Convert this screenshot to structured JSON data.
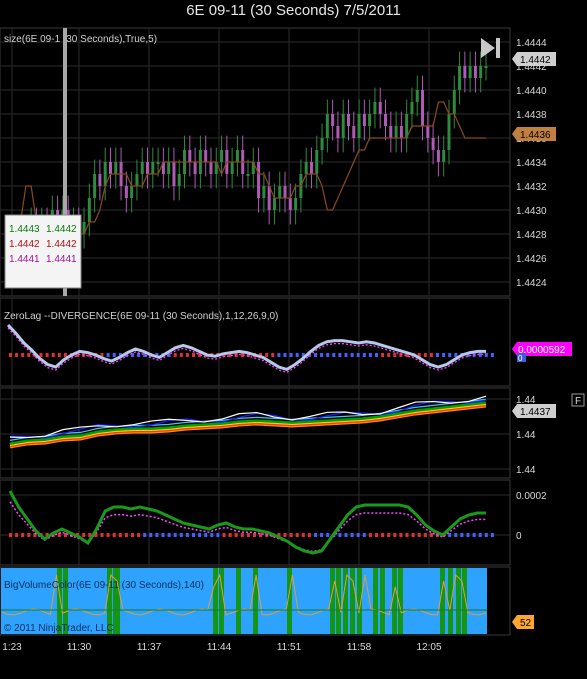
{
  "window": {
    "title": "6E 09-11 (30 Seconds)  7/5/2011"
  },
  "colors": {
    "background": "#000000",
    "grid": "#2b2b2b",
    "up_bar": "#2e8b3e",
    "down_bar": "#b05ab8",
    "sma": "#8b4a1e",
    "price_flag": "#cfcfcf",
    "sma_flag": "#c08040",
    "zerolag_line": "#b8c8e8",
    "zerolag_flag": "#ff00ff",
    "divergence_green": "#1a9a1a",
    "divergence_dots": "#ff44ff",
    "volume_bg": "#2da3ff",
    "volume_green": "#159515",
    "volume_line": "#d8a040",
    "volume_flag": "#ffa531"
  },
  "panels": {
    "price": {
      "label": "size(6E 09-1   (30 Seconds),True,5)"
    },
    "zerolag": {
      "label": "ZeroLag --DIVERGENCE(6E 09-11 (30 Seconds),1,12,26,9,0)"
    },
    "volume": {
      "label": "BigVolumeColor(6E 09-11 (30 Seconds),140)"
    }
  },
  "copyright": "© 2011 NinjaTrader, LLC",
  "data_box": {
    "rows": [
      {
        "a": "1.4443",
        "b": "1.4442",
        "color": "#0a7a0a"
      },
      {
        "a": "1.4442",
        "b": "1.4442",
        "color": "#b01010"
      },
      {
        "a": "1.4441",
        "b": "1.4441",
        "color": "#a010a0"
      }
    ]
  },
  "play_icon": "skip-forward-icon",
  "f_button": "F",
  "chart_data": [
    {
      "type": "candlestick",
      "title": "6E 09-11 (30 Seconds)  7/5/2011",
      "ylim": [
        1.4423,
        1.4445
      ],
      "ticks": [
        "1.4444",
        "1.4442",
        "1.4440",
        "1.4438",
        "1.4436",
        "1.4434",
        "1.4432",
        "1.4430",
        "1.4428",
        "1.4426",
        "1.4424"
      ],
      "last_price": "1.4442",
      "sma_label": "1.4436",
      "closes": [
        1.4426,
        1.4427,
        1.4428,
        1.4428,
        1.4429,
        1.4428,
        1.4429,
        1.4428,
        1.443,
        1.4429,
        1.443,
        1.4428,
        1.4429,
        1.4428,
        1.4429,
        1.4431,
        1.4433,
        1.4432,
        1.4434,
        1.4433,
        1.4434,
        1.4432,
        1.4431,
        1.4432,
        1.4433,
        1.4434,
        1.4433,
        1.4434,
        1.4434,
        1.4433,
        1.4434,
        1.4432,
        1.4433,
        1.4435,
        1.4434,
        1.4433,
        1.4435,
        1.4434,
        1.4433,
        1.4434,
        1.4435,
        1.4433,
        1.4434,
        1.4435,
        1.4433,
        1.4433,
        1.4434,
        1.4431,
        1.4432,
        1.443,
        1.4431,
        1.4432,
        1.4431,
        1.443,
        1.4431,
        1.4433,
        1.4434,
        1.4433,
        1.4435,
        1.4436,
        1.4438,
        1.4437,
        1.4436,
        1.4438,
        1.4437,
        1.4436,
        1.4438,
        1.4437,
        1.4438,
        1.4439,
        1.4438,
        1.4437,
        1.4436,
        1.4437,
        1.4436,
        1.4438,
        1.4439,
        1.444,
        1.4437,
        1.4436,
        1.4435,
        1.4434,
        1.4435,
        1.4438,
        1.444,
        1.4442,
        1.4441,
        1.4442,
        1.4441,
        1.4442,
        1.4442
      ],
      "sma": [
        1.4425,
        1.4427,
        1.4429,
        1.4432,
        1.4432,
        1.4429,
        1.4428,
        1.4428,
        1.4428,
        1.4428,
        1.4428,
        1.4429,
        1.4428,
        1.4428,
        1.4428,
        1.4429,
        1.4429,
        1.443,
        1.4432,
        1.4433,
        1.4433,
        1.4433,
        1.4433,
        1.4432,
        1.4432,
        1.4432,
        1.4433,
        1.4433,
        1.4433,
        1.4434,
        1.4434,
        1.4434,
        1.4434,
        1.4434,
        1.4434,
        1.4434,
        1.4434,
        1.4434,
        1.4434,
        1.4434,
        1.4433,
        1.4434,
        1.4434,
        1.4434,
        1.4434,
        1.4434,
        1.4434,
        1.4433,
        1.4433,
        1.4432,
        1.4431,
        1.4431,
        1.4431,
        1.4431,
        1.4432,
        1.4432,
        1.4433,
        1.4433,
        1.4433,
        1.4432,
        1.443,
        1.443,
        1.4431,
        1.4432,
        1.4433,
        1.4434,
        1.4435,
        1.4435,
        1.4436,
        1.4436,
        1.4436,
        1.4436,
        1.4436,
        1.4436,
        1.4436,
        1.4436,
        1.4437,
        1.4437,
        1.4437,
        1.4437,
        1.4437,
        1.4439,
        1.4439,
        1.4438,
        1.4438,
        1.4437,
        1.4436,
        1.4436,
        1.4436,
        1.4436,
        1.4436
      ]
    },
    {
      "type": "line",
      "title": "ZeroLag --DIVERGENCE(6E 09-11 (30 Seconds),1,12,26,9,0)",
      "value_label": "0.0000592",
      "zero_label": "0"
    },
    {
      "type": "line",
      "ticks": [
        "1.44",
        "1.44",
        "1.44"
      ],
      "last_label": "1.4437"
    },
    {
      "type": "line",
      "ticks": [
        "0.0002",
        "0"
      ],
      "values": [
        0.00022,
        0.00014,
        8e-05,
        2e-05,
        -2e-05,
        1e-05,
        3e-05,
        1e-05,
        -1e-05,
        -4e-05,
        3e-05,
        0.00012,
        0.00014,
        0.00014,
        0.00013,
        0.00014,
        0.00013,
        0.00012,
        0.0001,
        8e-05,
        6e-05,
        5e-05,
        4e-05,
        3e-05,
        5e-05,
        6e-05,
        4e-05,
        3e-05,
        3e-05,
        2e-05,
        1e-05,
        -1e-05,
        -3e-05,
        -6e-05,
        -8e-05,
        -9e-05,
        -8e-05,
        -2e-05,
        4e-05,
        0.0001,
        0.00014,
        0.00015,
        0.00015,
        0.00015,
        0.00015,
        0.00015,
        0.00014,
        0.0001,
        5e-05,
        2e-05,
        0.0,
        4e-05,
        8e-05,
        0.0001,
        0.00011,
        0.00011
      ]
    },
    {
      "type": "bar",
      "title": "BigVolumeColor(6E 09-11 (30 Seconds),140)",
      "last_label": "52"
    }
  ],
  "x_axis": {
    "ticks": [
      "1:23",
      "11:30",
      "11:37",
      "11:44",
      "11:51",
      "11:58",
      "12:05"
    ]
  }
}
